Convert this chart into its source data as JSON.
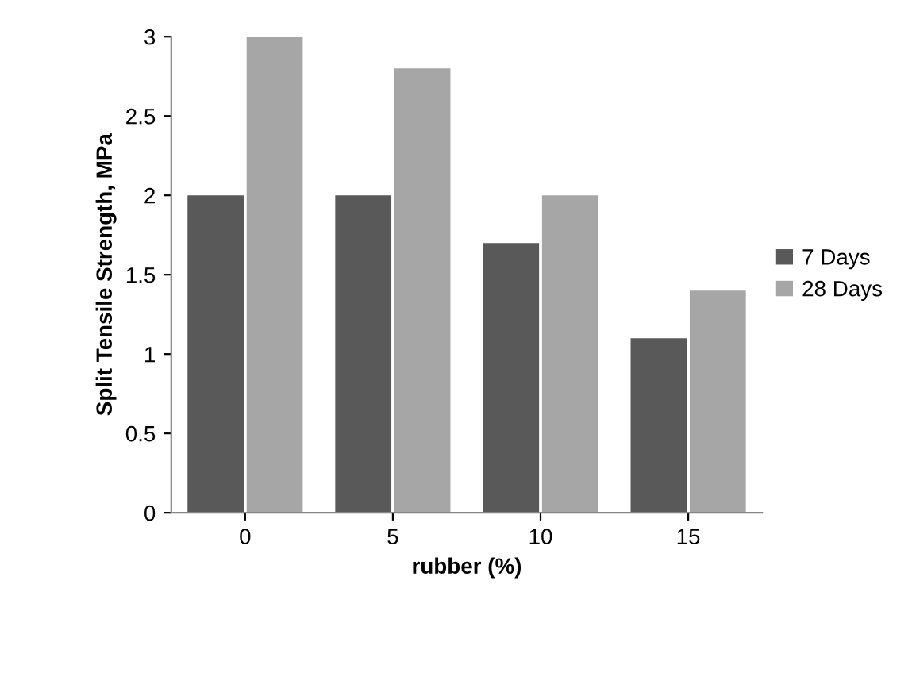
{
  "chart_data": {
    "type": "bar",
    "xlabel": "rubber (%)",
    "ylabel": "Split Tensile Strength, MPa",
    "categories": [
      "0",
      "5",
      "10",
      "15"
    ],
    "series": [
      {
        "name": "7 Days",
        "color": "#595959",
        "values": [
          2,
          2,
          1.7,
          1.1
        ]
      },
      {
        "name": "28 Days",
        "color": "#a6a6a6",
        "values": [
          3,
          2.8,
          2,
          1.4
        ]
      }
    ],
    "ylim": [
      0,
      3
    ],
    "yticks": [
      0,
      0.5,
      1,
      1.5,
      2,
      2.5,
      3
    ],
    "grid": false,
    "legend": "right"
  }
}
